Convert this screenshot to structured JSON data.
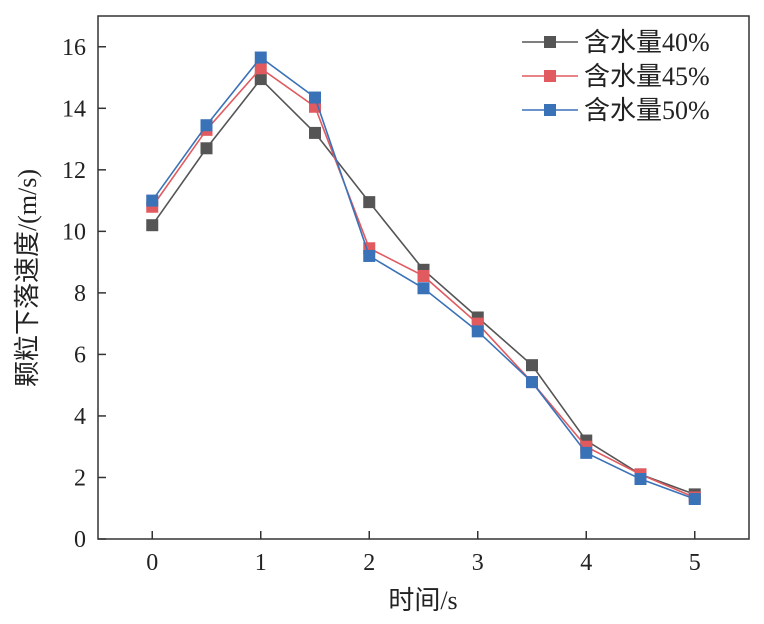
{
  "chart_data": {
    "type": "line",
    "title": "",
    "xlabel": "时间/s",
    "ylabel": "颗粒下落速度/(m/s)",
    "xlim": [
      -0.5,
      5.5
    ],
    "ylim": [
      0,
      17
    ],
    "xticks": [
      "0",
      "1",
      "2",
      "3",
      "4",
      "5"
    ],
    "yticks": [
      "0",
      "2",
      "4",
      "6",
      "8",
      "10",
      "12",
      "14",
      "16"
    ],
    "x": [
      0,
      0.5,
      1,
      1.5,
      2,
      2.5,
      3,
      3.5,
      4,
      4.5,
      5
    ],
    "grid": false,
    "legend_position": "top-right",
    "series": [
      {
        "name": "含水量40%",
        "color": "#555555",
        "marker": "square",
        "values": [
          10.2,
          12.7,
          14.95,
          13.2,
          10.95,
          8.75,
          7.2,
          5.65,
          3.2,
          2.1,
          1.45
        ]
      },
      {
        "name": "含水量45%",
        "color": "#e05a5f",
        "marker": "square",
        "values": [
          10.8,
          13.3,
          15.3,
          14.05,
          9.45,
          8.55,
          7.0,
          5.1,
          3.0,
          2.1,
          1.35
        ]
      },
      {
        "name": "含水量50%",
        "color": "#3a72b8",
        "marker": "square",
        "values": [
          11.0,
          13.45,
          15.65,
          14.35,
          9.2,
          8.15,
          6.75,
          5.1,
          2.8,
          1.95,
          1.3
        ]
      }
    ]
  }
}
